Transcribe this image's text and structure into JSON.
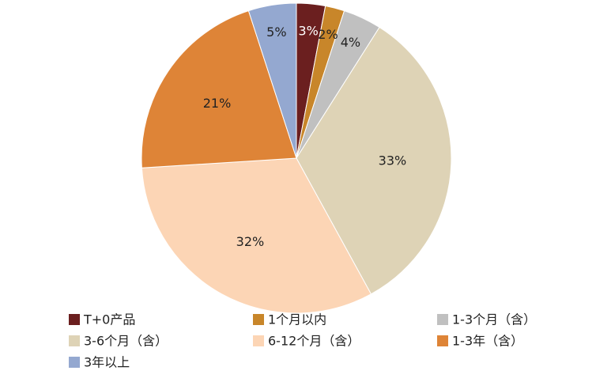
{
  "chart_data": {
    "type": "pie",
    "categories": [
      "T+0产品",
      "1个月以内",
      "1-3个月（含）",
      "3-6个月（含）",
      "6-12个月（含）",
      "1-3年（含）",
      "3年以上"
    ],
    "values": [
      3,
      2,
      4,
      33,
      32,
      21,
      5
    ],
    "value_labels": [
      "3%",
      "2%",
      "4%",
      "33%",
      "32%",
      "21%",
      "5%"
    ],
    "colors": [
      "#6b1f1f",
      "#c8862a",
      "#c0c0c0",
      "#ded3b6",
      "#fcd5b5",
      "#de8437",
      "#94a8d0"
    ],
    "legend": "bottom"
  }
}
